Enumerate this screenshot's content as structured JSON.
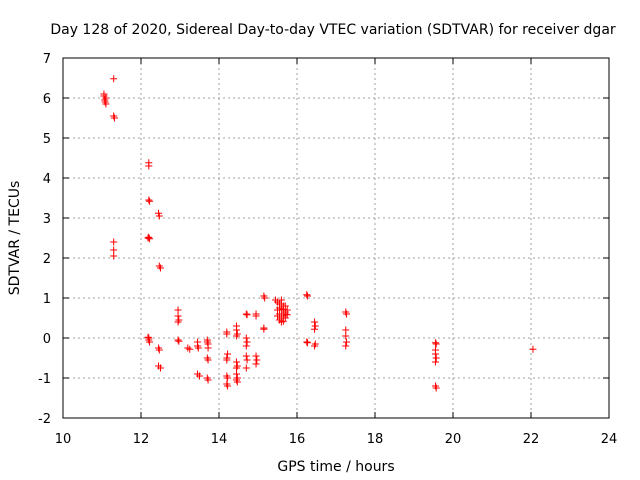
{
  "chart_data": {
    "type": "scatter",
    "title": "Day 128 of 2020, Sidereal Day-to-day VTEC variation (SDTVAR) for receiver dgar",
    "xlabel": "GPS time / hours",
    "ylabel": "SDTVAR / TECUs",
    "xlim": [
      10,
      24
    ],
    "ylim": [
      -2,
      7
    ],
    "x_ticks": [
      10,
      12,
      14,
      16,
      18,
      20,
      22,
      24
    ],
    "y_ticks": [
      -2,
      -1,
      0,
      1,
      2,
      3,
      4,
      5,
      6,
      7
    ],
    "grid": true,
    "marker": "+",
    "color": "#ff0000",
    "series": [
      {
        "name": "dgar",
        "points": [
          [
            11.05,
            6.1
          ],
          [
            11.05,
            6.05
          ],
          [
            11.07,
            5.95
          ],
          [
            11.1,
            5.85
          ],
          [
            11.1,
            6.0
          ],
          [
            11.08,
            5.9
          ],
          [
            11.3,
            6.48
          ],
          [
            11.3,
            5.55
          ],
          [
            11.32,
            5.5
          ],
          [
            11.3,
            2.4
          ],
          [
            11.3,
            2.2
          ],
          [
            11.3,
            2.05
          ],
          [
            12.2,
            4.38
          ],
          [
            12.2,
            4.3
          ],
          [
            12.2,
            3.45
          ],
          [
            12.22,
            3.42
          ],
          [
            12.2,
            2.52
          ],
          [
            12.22,
            2.48
          ],
          [
            12.18,
            2.5
          ],
          [
            12.45,
            3.12
          ],
          [
            12.47,
            3.05
          ],
          [
            12.47,
            1.8
          ],
          [
            12.5,
            1.75
          ],
          [
            12.2,
            0.0
          ],
          [
            12.2,
            -0.05
          ],
          [
            12.22,
            -0.1
          ],
          [
            12.18,
            0.02
          ],
          [
            12.45,
            -0.25
          ],
          [
            12.47,
            -0.3
          ],
          [
            12.45,
            -0.7
          ],
          [
            12.5,
            -0.75
          ],
          [
            12.95,
            0.7
          ],
          [
            12.95,
            0.55
          ],
          [
            12.97,
            0.45
          ],
          [
            12.95,
            0.4
          ],
          [
            12.95,
            -0.05
          ],
          [
            12.97,
            -0.08
          ],
          [
            13.2,
            -0.25
          ],
          [
            13.25,
            -0.28
          ],
          [
            13.45,
            -0.1
          ],
          [
            13.45,
            -0.2
          ],
          [
            13.47,
            -0.25
          ],
          [
            13.45,
            -0.9
          ],
          [
            13.5,
            -0.95
          ],
          [
            13.7,
            -0.05
          ],
          [
            13.7,
            -0.1
          ],
          [
            13.72,
            -0.15
          ],
          [
            13.72,
            -0.25
          ],
          [
            13.7,
            -0.5
          ],
          [
            13.72,
            -0.55
          ],
          [
            13.7,
            -1.0
          ],
          [
            13.72,
            -1.05
          ],
          [
            14.2,
            0.15
          ],
          [
            14.2,
            0.1
          ],
          [
            14.22,
            -0.4
          ],
          [
            14.2,
            -0.5
          ],
          [
            14.2,
            -0.55
          ],
          [
            14.2,
            -0.95
          ],
          [
            14.22,
            -1.0
          ],
          [
            14.2,
            -1.15
          ],
          [
            14.22,
            -1.2
          ],
          [
            14.45,
            0.3
          ],
          [
            14.45,
            0.2
          ],
          [
            14.47,
            0.1
          ],
          [
            14.45,
            0.05
          ],
          [
            14.45,
            -0.6
          ],
          [
            14.47,
            -0.7
          ],
          [
            14.45,
            -0.75
          ],
          [
            14.45,
            -0.9
          ],
          [
            14.47,
            -1.0
          ],
          [
            14.45,
            -1.05
          ],
          [
            14.47,
            -1.1
          ],
          [
            14.7,
            0.6
          ],
          [
            14.72,
            0.58
          ],
          [
            14.7,
            0.0
          ],
          [
            14.72,
            -0.1
          ],
          [
            14.7,
            -0.2
          ],
          [
            14.7,
            -0.45
          ],
          [
            14.72,
            -0.55
          ],
          [
            14.7,
            -0.75
          ],
          [
            14.95,
            0.6
          ],
          [
            14.95,
            0.55
          ],
          [
            14.95,
            -0.45
          ],
          [
            14.97,
            -0.55
          ],
          [
            14.95,
            -0.65
          ],
          [
            15.15,
            1.05
          ],
          [
            15.17,
            1.0
          ],
          [
            15.15,
            0.25
          ],
          [
            15.15,
            0.22
          ],
          [
            15.45,
            0.95
          ],
          [
            15.5,
            0.9
          ],
          [
            15.55,
            0.85
          ],
          [
            15.6,
            0.95
          ],
          [
            15.65,
            0.8
          ],
          [
            15.5,
            0.7
          ],
          [
            15.55,
            0.75
          ],
          [
            15.6,
            0.7
          ],
          [
            15.65,
            0.72
          ],
          [
            15.7,
            0.65
          ],
          [
            15.5,
            0.55
          ],
          [
            15.55,
            0.6
          ],
          [
            15.6,
            0.5
          ],
          [
            15.65,
            0.55
          ],
          [
            15.7,
            0.6
          ],
          [
            15.55,
            0.45
          ],
          [
            15.6,
            0.4
          ],
          [
            15.65,
            0.42
          ],
          [
            15.7,
            0.5
          ],
          [
            15.75,
            0.58
          ],
          [
            15.6,
            0.85
          ],
          [
            15.7,
            0.8
          ],
          [
            15.75,
            0.7
          ],
          [
            16.25,
            1.08
          ],
          [
            16.27,
            1.05
          ],
          [
            16.25,
            -0.1
          ],
          [
            16.27,
            -0.12
          ],
          [
            16.45,
            0.4
          ],
          [
            16.47,
            0.3
          ],
          [
            16.45,
            0.22
          ],
          [
            16.47,
            -0.15
          ],
          [
            16.45,
            -0.2
          ],
          [
            17.25,
            0.65
          ],
          [
            17.27,
            0.6
          ],
          [
            17.25,
            0.2
          ],
          [
            17.25,
            0.05
          ],
          [
            17.27,
            -0.1
          ],
          [
            17.25,
            -0.2
          ],
          [
            19.55,
            -0.12
          ],
          [
            19.57,
            -0.15
          ],
          [
            19.55,
            -0.3
          ],
          [
            19.55,
            -0.4
          ],
          [
            19.57,
            -0.5
          ],
          [
            19.55,
            -0.6
          ],
          [
            19.55,
            -1.2
          ],
          [
            19.57,
            -1.25
          ],
          [
            22.05,
            -0.28
          ]
        ]
      }
    ]
  }
}
